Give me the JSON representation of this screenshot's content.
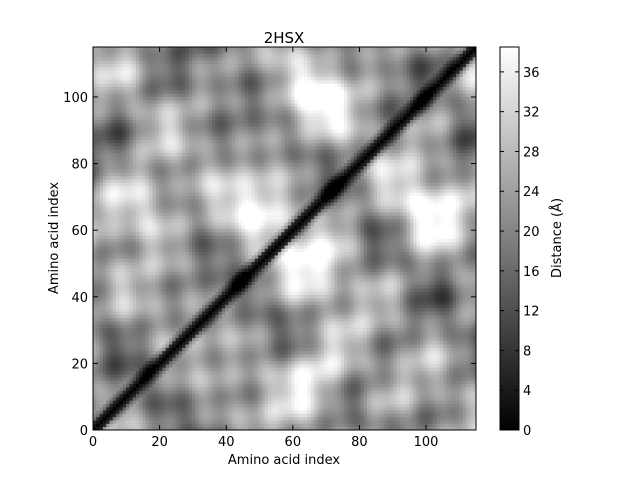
{
  "chart_data": {
    "type": "heatmap",
    "title": "2HSX",
    "xlabel": "Amino acid index",
    "ylabel": "Amino acid index",
    "xlim": [
      0,
      115
    ],
    "ylim": [
      0,
      115
    ],
    "x_ticks": [
      0,
      20,
      40,
      60,
      80,
      100
    ],
    "y_ticks": [
      0,
      20,
      40,
      60,
      80,
      100
    ],
    "colormap": "gray",
    "colorbar": {
      "label": "Distance (Å)",
      "min": 0,
      "max": 38.5,
      "ticks": [
        0,
        4,
        8,
        12,
        16,
        20,
        24,
        28,
        32,
        36
      ]
    },
    "diagonal_value": 0,
    "notes_bright_regions": [
      {
        "i": 15,
        "j": 67,
        "value": 38
      },
      {
        "i": 50,
        "j": 67,
        "value": 36
      },
      {
        "i": 67,
        "j": 100,
        "value": 38
      },
      {
        "i": 67,
        "j": 15,
        "value": 38
      },
      {
        "i": 67,
        "j": 50,
        "value": 36
      },
      {
        "i": 100,
        "j": 67,
        "value": 38
      }
    ]
  }
}
